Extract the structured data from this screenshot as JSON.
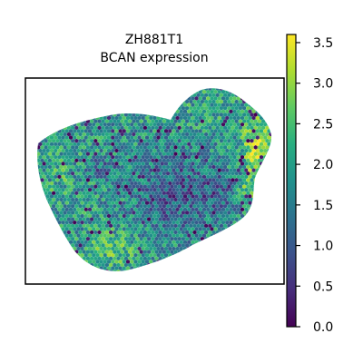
{
  "chart_data": {
    "type": "scatter",
    "title_line1": "ZH881T1",
    "title_line2": "BCAN expression",
    "xlabel": "",
    "ylabel": "",
    "colormap": "viridis",
    "colorbar": {
      "vmin": 0.0,
      "vmax": 3.6,
      "ticks": [
        0.0,
        0.5,
        1.0,
        1.5,
        2.0,
        2.5,
        3.0,
        3.5
      ],
      "tick_labels": [
        "0.0",
        "0.5",
        "1.0",
        "1.5",
        "2.0",
        "2.5",
        "3.0",
        "3.5"
      ]
    },
    "spot_shape": "hexagon",
    "tissue_regions": [
      {
        "region": "left lobe",
        "approx_mean": 1.9
      },
      {
        "region": "lower center",
        "approx_mean": 2.2
      },
      {
        "region": "central band",
        "approx_mean": 0.9
      },
      {
        "region": "upper right lobe",
        "approx_mean": 1.6
      },
      {
        "region": "right edge",
        "approx_mean": 3.0
      }
    ]
  }
}
